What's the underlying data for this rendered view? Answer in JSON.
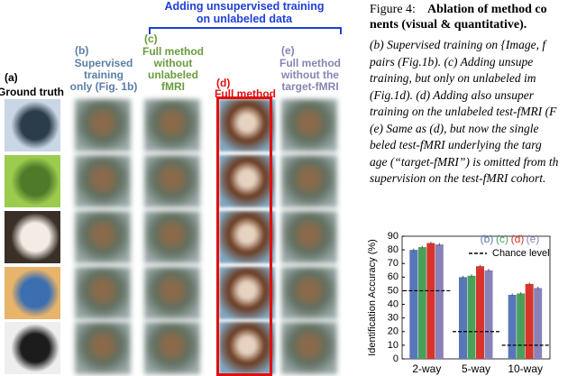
{
  "banner": [
    "Adding unsupervised training",
    "on unlabeled data"
  ],
  "columns": [
    {
      "tag": "(a)",
      "label": [
        "Ground truth"
      ]
    },
    {
      "tag": "(b)",
      "label": [
        "Supervised",
        "training",
        "only (Fig. 1b)"
      ]
    },
    {
      "tag": "(c)",
      "label": [
        "Full method",
        "without",
        "unlabeled",
        "fMRI"
      ]
    },
    {
      "tag": "(d)",
      "label": [
        "Full method"
      ]
    },
    {
      "tag": "(e)",
      "label": [
        "Full method",
        "without the",
        "target-fMRI"
      ]
    }
  ],
  "caption": {
    "prefix": "Figure 4:",
    "title": [
      "Ablation of method co",
      "nents (visual & quantitative)."
    ],
    "body": [
      "(b) Supervised training on {Image, f",
      "pairs (Fig.1b).  (c) Adding unsupe",
      "training, but only on unlabeled im",
      "(Fig.1d).   (d) Adding also unsuper",
      "training on the unlabeled test-fMRI (F",
      "(e) Same as (d), but now the single",
      "beled test-fMRI underlying the targ",
      "age (“target-fMRI”) is omitted from th",
      "supervision on the test-fMRI cohort."
    ]
  },
  "chart_data": {
    "type": "bar",
    "y_label": "Identification Accuracy (%)",
    "categories": [
      "2-way",
      "5-way",
      "10-way"
    ],
    "series": [
      {
        "name": "(b)",
        "color": "#5877b8",
        "values": [
          80,
          60,
          47
        ],
        "errors": [
          1,
          1,
          1
        ]
      },
      {
        "name": "(c)",
        "color": "#4aa05a",
        "values": [
          82,
          61,
          48
        ],
        "errors": [
          1,
          1,
          1
        ]
      },
      {
        "name": "(d)",
        "color": "#d9342b",
        "values": [
          85,
          68,
          55
        ],
        "errors": [
          1,
          1,
          1
        ]
      },
      {
        "name": "(e)",
        "color": "#8882b8",
        "values": [
          84,
          65,
          52
        ],
        "errors": [
          1,
          1,
          1
        ]
      }
    ],
    "reference": {
      "name": "Chance level",
      "values": [
        50,
        20,
        10
      ]
    },
    "ylim": [
      0,
      90
    ],
    "yticks": [
      0,
      10,
      20,
      30,
      40,
      50,
      60,
      70,
      80,
      90
    ]
  }
}
